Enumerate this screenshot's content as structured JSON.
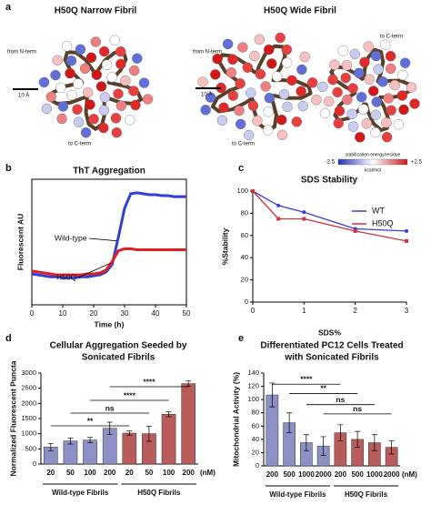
{
  "panels": [
    "a",
    "b",
    "c",
    "d",
    "e"
  ],
  "figure_a": {
    "titles": [
      "H50Q Narrow Fibril",
      "H50Q Wide Fibril"
    ],
    "n_term_labels": [
      "from N-term",
      "from N-term"
    ],
    "c_term_labels": [
      "to C-term",
      "to C-term",
      "to C-term"
    ],
    "scale_labels": [
      "10 Å",
      "10 Å"
    ],
    "colorbar": {
      "title": "stabilization energy/residue",
      "unit": "kcal/mol",
      "ticks": [
        -2.5,
        {
          "value": 2.5,
          "label": "+2.5"
        }
      ]
    }
  },
  "chart_data": [
    {
      "type": "line",
      "title": "ThT Aggregation",
      "xlabel": "Time (h)",
      "ylabel": "Fluorescent AU",
      "x": [
        0,
        2,
        4,
        6,
        8,
        10,
        12,
        14,
        16,
        18,
        20,
        22,
        24,
        26,
        28,
        30,
        32,
        34,
        36,
        38,
        40,
        42,
        44,
        46,
        48,
        50
      ],
      "series": [
        {
          "name": "Wild-type",
          "color": "#2f3fd8",
          "values": [
            32,
            31,
            30,
            29,
            29,
            28,
            28,
            28,
            29,
            29,
            30,
            31,
            34,
            42,
            70,
            100,
            115,
            116,
            115,
            114,
            114,
            113,
            113,
            112,
            112,
            112
          ]
        },
        {
          "name": "H50Q",
          "color": "#e02020",
          "values": [
            35,
            34,
            33,
            32,
            31,
            31,
            31,
            31,
            31,
            32,
            32,
            33,
            36,
            45,
            56,
            58,
            58,
            57,
            57,
            57,
            57,
            57,
            57,
            57,
            57,
            57
          ]
        }
      ],
      "xlim": [
        0,
        50
      ],
      "xticks": [
        0,
        10,
        20,
        30,
        40,
        50
      ],
      "ylim": [
        0,
        130
      ]
    },
    {
      "type": "line",
      "title": "SDS Stability",
      "xlabel": "SDS%",
      "ylabel": "%Stability",
      "x": [
        0,
        0.5,
        1,
        2,
        3
      ],
      "series": [
        {
          "name": "WT",
          "color": "#3a3ad8",
          "values": [
            100,
            87,
            81,
            66,
            64
          ]
        },
        {
          "name": "H50Q",
          "color": "#d03040",
          "values": [
            100,
            75,
            75,
            64,
            55
          ]
        }
      ],
      "xlim": [
        0,
        3
      ],
      "xticks": [
        0,
        1,
        2,
        3
      ],
      "ylim": [
        0,
        100
      ],
      "yticks": [
        0,
        20,
        40,
        60,
        80,
        100
      ],
      "legend": "upper right"
    },
    {
      "type": "bar",
      "title": [
        "Cellular Aggregation Seeded by",
        "Sonicated Fibrils"
      ],
      "ylabel": "Normalized Fluorescent Puncta",
      "unit": "(nM)",
      "groups": [
        {
          "name": "Wild-type Fibrils",
          "color": "#8c90c4",
          "categories": [
            "20",
            "50",
            "100",
            "200"
          ],
          "values": [
            560,
            760,
            790,
            1180
          ],
          "errors": [
            120,
            100,
            90,
            200
          ]
        },
        {
          "name": "H50Q Fibrils",
          "color": "#b85c5c",
          "categories": [
            "20",
            "50",
            "100",
            "200"
          ],
          "values": [
            1020,
            1000,
            1640,
            2650
          ],
          "errors": [
            70,
            250,
            80,
            90
          ]
        }
      ],
      "significance": [
        "**",
        "ns",
        "****",
        "****"
      ],
      "ylim": [
        0,
        3000
      ],
      "yticks": [
        0,
        500,
        1000,
        1500,
        2000,
        2500,
        3000
      ]
    },
    {
      "type": "bar",
      "title": [
        "Differentiated PC12 Cells Treated",
        "with Sonicated Fibrils"
      ],
      "ylabel": "Mitochondrial Activity (%)",
      "unit": "(nM)",
      "groups": [
        {
          "name": "Wild-type Fibrils",
          "color": "#8c90c4",
          "categories": [
            "200",
            "500",
            "1000",
            "2000"
          ],
          "values": [
            107,
            65,
            35,
            30
          ],
          "errors": [
            18,
            15,
            12,
            14
          ]
        },
        {
          "name": "H50Q Fibrils",
          "color": "#b85c5c",
          "categories": [
            "200",
            "500",
            "1000",
            "2000"
          ],
          "values": [
            50,
            40,
            35,
            28
          ],
          "errors": [
            12,
            12,
            12,
            10
          ]
        }
      ],
      "significance": [
        "****",
        "**",
        "ns",
        "ns"
      ],
      "ylim": [
        0,
        140
      ],
      "yticks": [
        0,
        20,
        40,
        60,
        80,
        100,
        120,
        140
      ]
    }
  ]
}
